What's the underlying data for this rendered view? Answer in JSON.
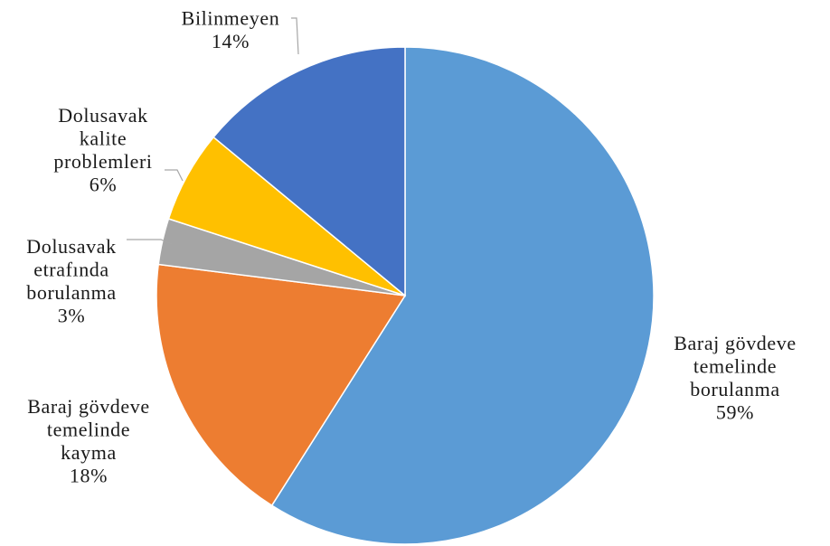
{
  "chart_data": {
    "type": "pie",
    "title": "",
    "slices": [
      {
        "label_lines": [
          "Baraj gövdeve",
          "temelinde",
          "borulanma"
        ],
        "value": 59,
        "value_label": "59%",
        "color": "#5b9bd5"
      },
      {
        "label_lines": [
          "Baraj gövdeve",
          "temelinde",
          "kayma"
        ],
        "value": 18,
        "value_label": "18%",
        "color": "#ed7d31"
      },
      {
        "label_lines": [
          "Dolusavak",
          "etrafında",
          "borulanma"
        ],
        "value": 3,
        "value_label": "3%",
        "color": "#a5a5a5"
      },
      {
        "label_lines": [
          "Dolusavak",
          "kalite",
          "problemleri"
        ],
        "value": 6,
        "value_label": "6%",
        "color": "#ffc000"
      },
      {
        "label_lines": [
          "Bilinmeyen"
        ],
        "value": 14,
        "value_label": "14%",
        "color": "#4472c4"
      }
    ],
    "start": "12 o'clock",
    "direction": "clockwise",
    "legend": "none"
  }
}
